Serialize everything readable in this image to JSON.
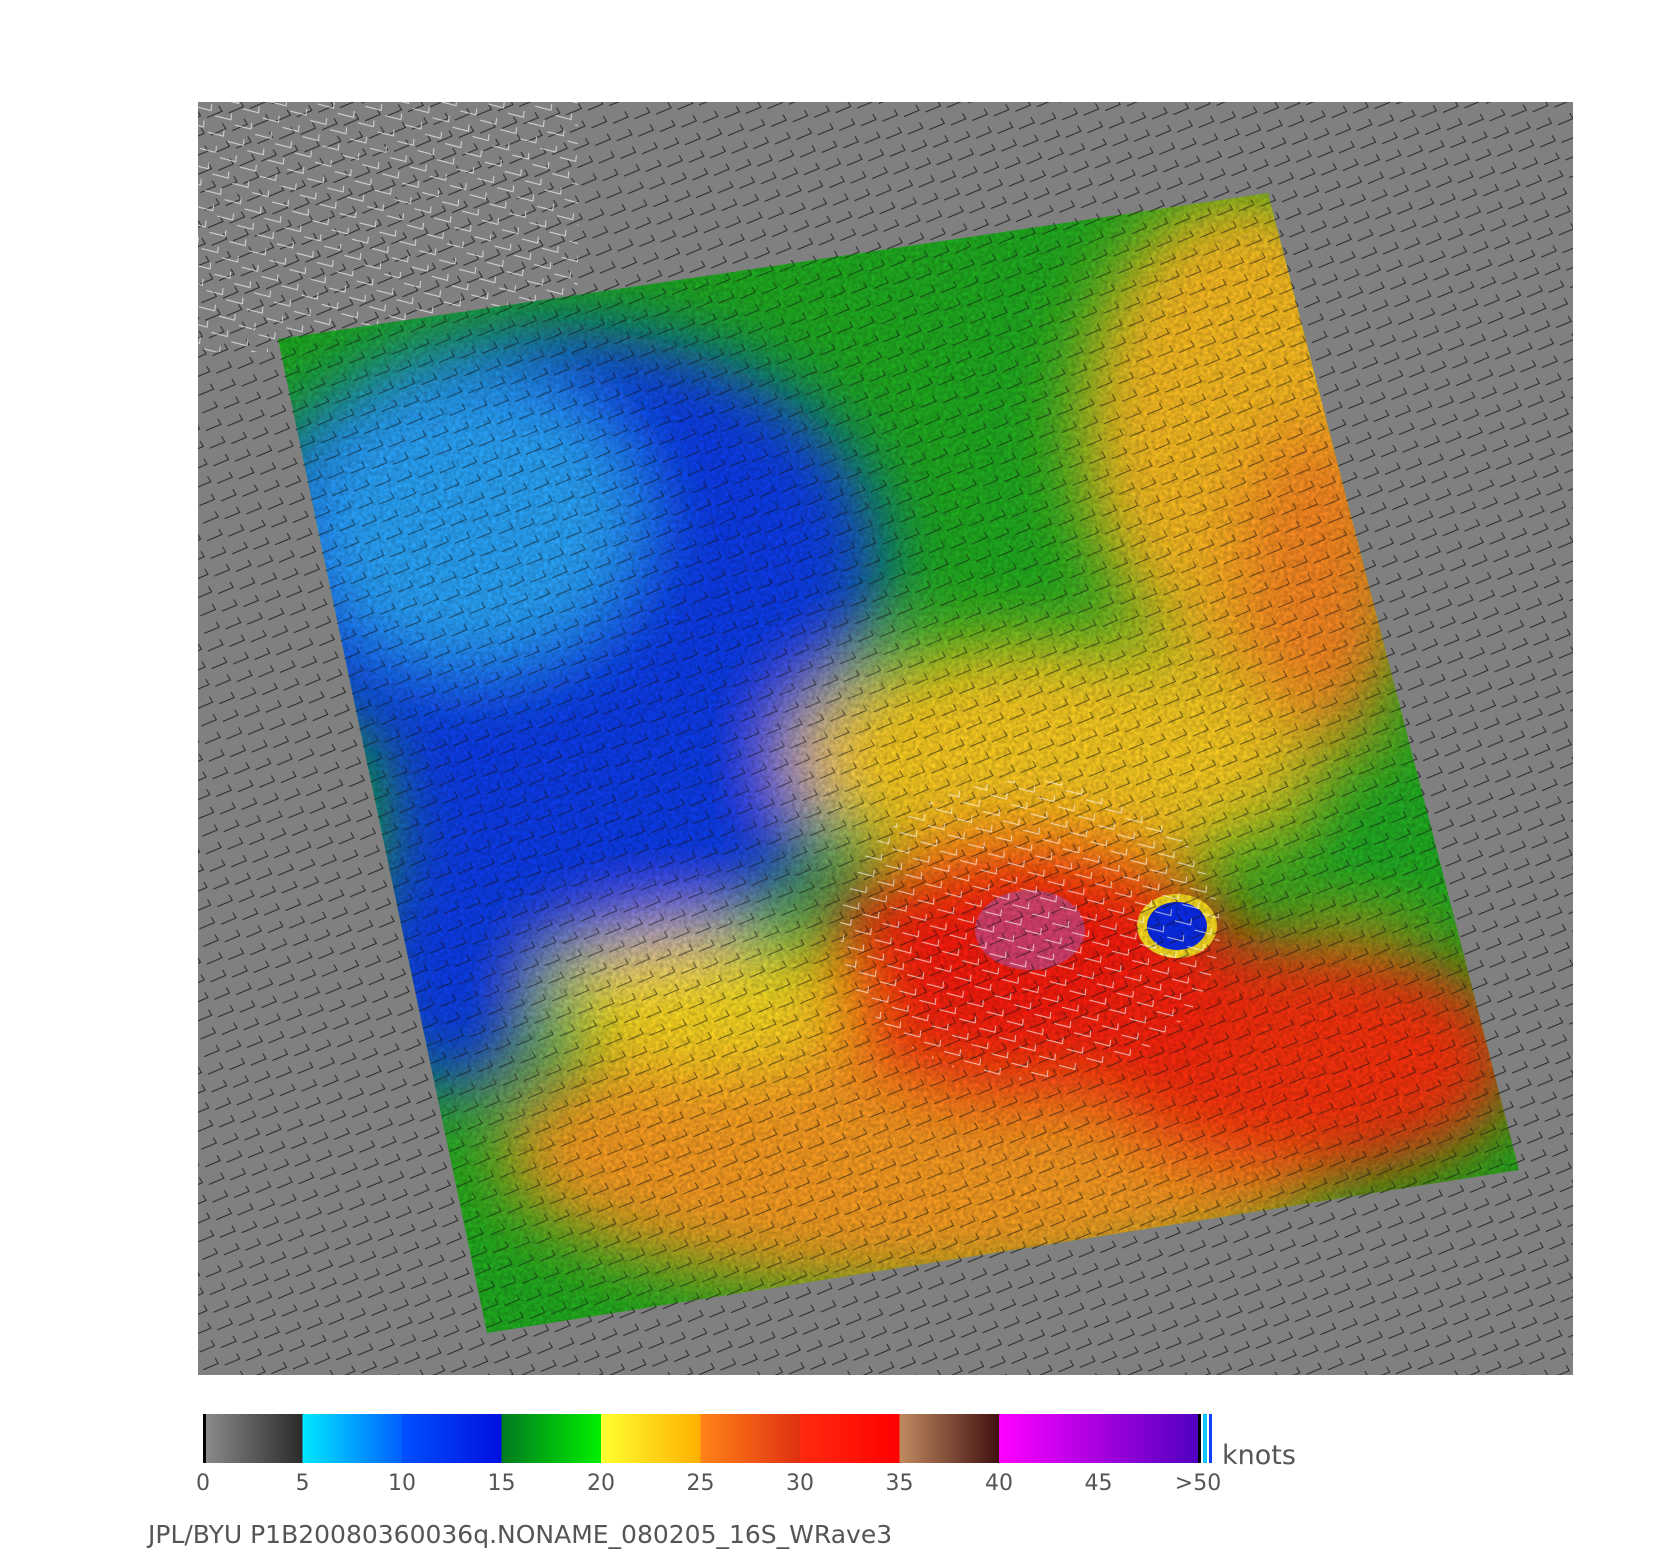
{
  "colorbar": {
    "lim": [
      0,
      50
    ],
    "ticks": [
      0,
      5,
      10,
      15,
      20,
      25,
      30,
      35,
      40,
      45,
      {
        "value": 50,
        "label": ">50"
      }
    ],
    "unit": "knots",
    "segments": [
      {
        "lim": [
          0,
          5
        ],
        "colors": [
          "#8c8c8c",
          "#2a2a2a"
        ]
      },
      {
        "lim": [
          5,
          10
        ],
        "colors": [
          "#00e8ff",
          "#0060ff"
        ]
      },
      {
        "lim": [
          10,
          15
        ],
        "colors": [
          "#0050ff",
          "#0010e0"
        ]
      },
      {
        "lim": [
          15,
          20
        ],
        "colors": [
          "#007a20",
          "#00f000"
        ]
      },
      {
        "lim": [
          20,
          25
        ],
        "colors": [
          "#ffff30",
          "#ffb000"
        ]
      },
      {
        "lim": [
          25,
          30
        ],
        "colors": [
          "#ff8418",
          "#e03010"
        ]
      },
      {
        "lim": [
          30,
          35
        ],
        "colors": [
          "#ff2a10",
          "#ff0000"
        ]
      },
      {
        "lim": [
          35,
          40
        ],
        "colors": [
          "#c08a60",
          "#401010"
        ]
      },
      {
        "lim": [
          40,
          50
        ],
        "colors": [
          "#ff00ff",
          "#5000c0"
        ]
      }
    ]
  },
  "caption": "JPL/BYU  P1B20080360036q.NONAME_080205_16S_WRave3"
}
